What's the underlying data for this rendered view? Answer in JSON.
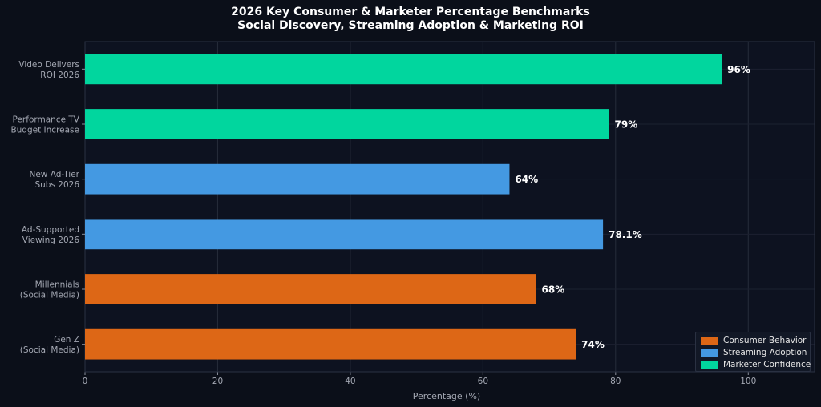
{
  "chart_data": {
    "type": "bar",
    "orientation": "horizontal",
    "title": "2026 Key Consumer & Marketer Percentage Benchmarks",
    "subtitle": "Social Discovery, Streaming Adoption & Marketing ROI",
    "xlabel": "Percentage (%)",
    "ylabel": "",
    "xlim": [
      0,
      110
    ],
    "xticks": [
      0,
      20,
      40,
      60,
      80,
      100
    ],
    "grid": true,
    "legend_position": "bottom-right",
    "categories": [
      [
        "Video Delivers",
        "ROI 2026"
      ],
      [
        "Performance TV",
        "Budget Increase"
      ],
      [
        "New Ad-Tier",
        "Subs 2026"
      ],
      [
        "Ad-Supported",
        "Viewing 2026"
      ],
      [
        "Millennials",
        "(Social Media)"
      ],
      [
        "Gen Z",
        "(Social Media)"
      ]
    ],
    "values": [
      96,
      79,
      64,
      78.1,
      68,
      74
    ],
    "value_labels": [
      "96%",
      "79%",
      "64%",
      "78.1%",
      "68%",
      "74%"
    ],
    "bar_groups": [
      "Marketer Confidence",
      "Marketer Confidence",
      "Streaming Adoption",
      "Streaming Adoption",
      "Consumer Behavior",
      "Consumer Behavior"
    ],
    "legend": [
      {
        "name": "Consumer Behavior",
        "color": "#dd6716"
      },
      {
        "name": "Streaming Adoption",
        "color": "#4499e2"
      },
      {
        "name": "Marketer Confidence",
        "color": "#01d69e"
      }
    ]
  }
}
